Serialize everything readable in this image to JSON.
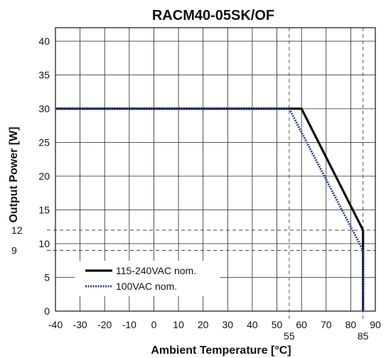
{
  "chart_data": {
    "type": "line",
    "title": "RACM40-05SK/OF",
    "xlabel": "Ambient Temperature [°C]",
    "ylabel": "Output Power [W]",
    "xlim": [
      -40,
      90
    ],
    "ylim": [
      0,
      42
    ],
    "x_ticks": [
      -40,
      -30,
      -20,
      -10,
      0,
      10,
      20,
      30,
      40,
      50,
      60,
      70,
      80,
      90
    ],
    "x_extra_ticks": [
      55,
      85
    ],
    "y_ticks": [
      0,
      5,
      10,
      15,
      20,
      25,
      30,
      35,
      40
    ],
    "y_extra_ticks": [
      9,
      12
    ],
    "grid": true,
    "legend_position": "bottom-left",
    "reference_lines": {
      "horizontal": [
        9,
        12
      ],
      "vertical": [
        55,
        85
      ]
    },
    "series": [
      {
        "name": "115-240VAC nom.",
        "color": "#111111",
        "style": "solid",
        "x": [
          -40,
          60,
          85,
          85
        ],
        "y": [
          30,
          30,
          12,
          0
        ]
      },
      {
        "name": "100VAC nom.",
        "color": "#2a3f8f",
        "style": "dotted",
        "x": [
          -40,
          55,
          85,
          85
        ],
        "y": [
          30,
          30,
          9,
          0
        ]
      }
    ]
  }
}
